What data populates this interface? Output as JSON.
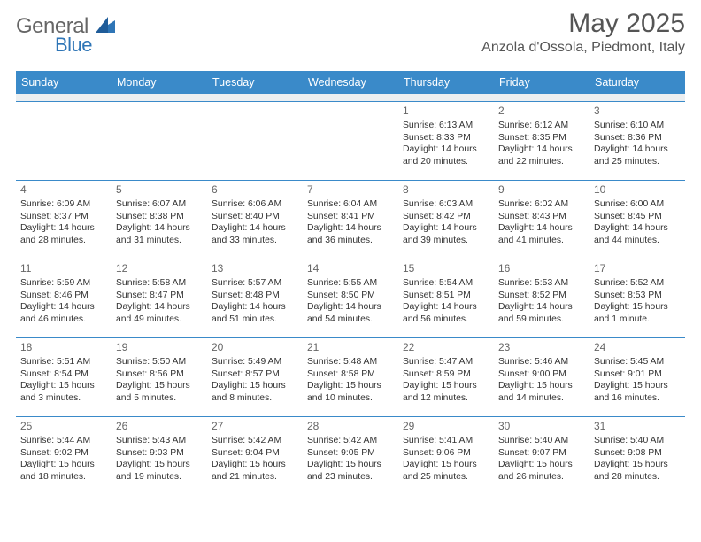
{
  "brand": {
    "part1": "General",
    "part2": "Blue"
  },
  "title": "May 2025",
  "location": "Anzola d'Ossola, Piedmont, Italy",
  "colors": {
    "header_bar": "#3a8ac9",
    "week_divider": "#3a8ac9",
    "spacer_bg": "#eceff1",
    "text": "#333333",
    "muted": "#666666",
    "brand_blue": "#2e75b6"
  },
  "dow": [
    "Sunday",
    "Monday",
    "Tuesday",
    "Wednesday",
    "Thursday",
    "Friday",
    "Saturday"
  ],
  "weeks": [
    [
      {
        "n": "",
        "sr": "",
        "ss": "",
        "dl": ""
      },
      {
        "n": "",
        "sr": "",
        "ss": "",
        "dl": ""
      },
      {
        "n": "",
        "sr": "",
        "ss": "",
        "dl": ""
      },
      {
        "n": "",
        "sr": "",
        "ss": "",
        "dl": ""
      },
      {
        "n": "1",
        "sr": "Sunrise: 6:13 AM",
        "ss": "Sunset: 8:33 PM",
        "dl": "Daylight: 14 hours and 20 minutes."
      },
      {
        "n": "2",
        "sr": "Sunrise: 6:12 AM",
        "ss": "Sunset: 8:35 PM",
        "dl": "Daylight: 14 hours and 22 minutes."
      },
      {
        "n": "3",
        "sr": "Sunrise: 6:10 AM",
        "ss": "Sunset: 8:36 PM",
        "dl": "Daylight: 14 hours and 25 minutes."
      }
    ],
    [
      {
        "n": "4",
        "sr": "Sunrise: 6:09 AM",
        "ss": "Sunset: 8:37 PM",
        "dl": "Daylight: 14 hours and 28 minutes."
      },
      {
        "n": "5",
        "sr": "Sunrise: 6:07 AM",
        "ss": "Sunset: 8:38 PM",
        "dl": "Daylight: 14 hours and 31 minutes."
      },
      {
        "n": "6",
        "sr": "Sunrise: 6:06 AM",
        "ss": "Sunset: 8:40 PM",
        "dl": "Daylight: 14 hours and 33 minutes."
      },
      {
        "n": "7",
        "sr": "Sunrise: 6:04 AM",
        "ss": "Sunset: 8:41 PM",
        "dl": "Daylight: 14 hours and 36 minutes."
      },
      {
        "n": "8",
        "sr": "Sunrise: 6:03 AM",
        "ss": "Sunset: 8:42 PM",
        "dl": "Daylight: 14 hours and 39 minutes."
      },
      {
        "n": "9",
        "sr": "Sunrise: 6:02 AM",
        "ss": "Sunset: 8:43 PM",
        "dl": "Daylight: 14 hours and 41 minutes."
      },
      {
        "n": "10",
        "sr": "Sunrise: 6:00 AM",
        "ss": "Sunset: 8:45 PM",
        "dl": "Daylight: 14 hours and 44 minutes."
      }
    ],
    [
      {
        "n": "11",
        "sr": "Sunrise: 5:59 AM",
        "ss": "Sunset: 8:46 PM",
        "dl": "Daylight: 14 hours and 46 minutes."
      },
      {
        "n": "12",
        "sr": "Sunrise: 5:58 AM",
        "ss": "Sunset: 8:47 PM",
        "dl": "Daylight: 14 hours and 49 minutes."
      },
      {
        "n": "13",
        "sr": "Sunrise: 5:57 AM",
        "ss": "Sunset: 8:48 PM",
        "dl": "Daylight: 14 hours and 51 minutes."
      },
      {
        "n": "14",
        "sr": "Sunrise: 5:55 AM",
        "ss": "Sunset: 8:50 PM",
        "dl": "Daylight: 14 hours and 54 minutes."
      },
      {
        "n": "15",
        "sr": "Sunrise: 5:54 AM",
        "ss": "Sunset: 8:51 PM",
        "dl": "Daylight: 14 hours and 56 minutes."
      },
      {
        "n": "16",
        "sr": "Sunrise: 5:53 AM",
        "ss": "Sunset: 8:52 PM",
        "dl": "Daylight: 14 hours and 59 minutes."
      },
      {
        "n": "17",
        "sr": "Sunrise: 5:52 AM",
        "ss": "Sunset: 8:53 PM",
        "dl": "Daylight: 15 hours and 1 minute."
      }
    ],
    [
      {
        "n": "18",
        "sr": "Sunrise: 5:51 AM",
        "ss": "Sunset: 8:54 PM",
        "dl": "Daylight: 15 hours and 3 minutes."
      },
      {
        "n": "19",
        "sr": "Sunrise: 5:50 AM",
        "ss": "Sunset: 8:56 PM",
        "dl": "Daylight: 15 hours and 5 minutes."
      },
      {
        "n": "20",
        "sr": "Sunrise: 5:49 AM",
        "ss": "Sunset: 8:57 PM",
        "dl": "Daylight: 15 hours and 8 minutes."
      },
      {
        "n": "21",
        "sr": "Sunrise: 5:48 AM",
        "ss": "Sunset: 8:58 PM",
        "dl": "Daylight: 15 hours and 10 minutes."
      },
      {
        "n": "22",
        "sr": "Sunrise: 5:47 AM",
        "ss": "Sunset: 8:59 PM",
        "dl": "Daylight: 15 hours and 12 minutes."
      },
      {
        "n": "23",
        "sr": "Sunrise: 5:46 AM",
        "ss": "Sunset: 9:00 PM",
        "dl": "Daylight: 15 hours and 14 minutes."
      },
      {
        "n": "24",
        "sr": "Sunrise: 5:45 AM",
        "ss": "Sunset: 9:01 PM",
        "dl": "Daylight: 15 hours and 16 minutes."
      }
    ],
    [
      {
        "n": "25",
        "sr": "Sunrise: 5:44 AM",
        "ss": "Sunset: 9:02 PM",
        "dl": "Daylight: 15 hours and 18 minutes."
      },
      {
        "n": "26",
        "sr": "Sunrise: 5:43 AM",
        "ss": "Sunset: 9:03 PM",
        "dl": "Daylight: 15 hours and 19 minutes."
      },
      {
        "n": "27",
        "sr": "Sunrise: 5:42 AM",
        "ss": "Sunset: 9:04 PM",
        "dl": "Daylight: 15 hours and 21 minutes."
      },
      {
        "n": "28",
        "sr": "Sunrise: 5:42 AM",
        "ss": "Sunset: 9:05 PM",
        "dl": "Daylight: 15 hours and 23 minutes."
      },
      {
        "n": "29",
        "sr": "Sunrise: 5:41 AM",
        "ss": "Sunset: 9:06 PM",
        "dl": "Daylight: 15 hours and 25 minutes."
      },
      {
        "n": "30",
        "sr": "Sunrise: 5:40 AM",
        "ss": "Sunset: 9:07 PM",
        "dl": "Daylight: 15 hours and 26 minutes."
      },
      {
        "n": "31",
        "sr": "Sunrise: 5:40 AM",
        "ss": "Sunset: 9:08 PM",
        "dl": "Daylight: 15 hours and 28 minutes."
      }
    ]
  ]
}
